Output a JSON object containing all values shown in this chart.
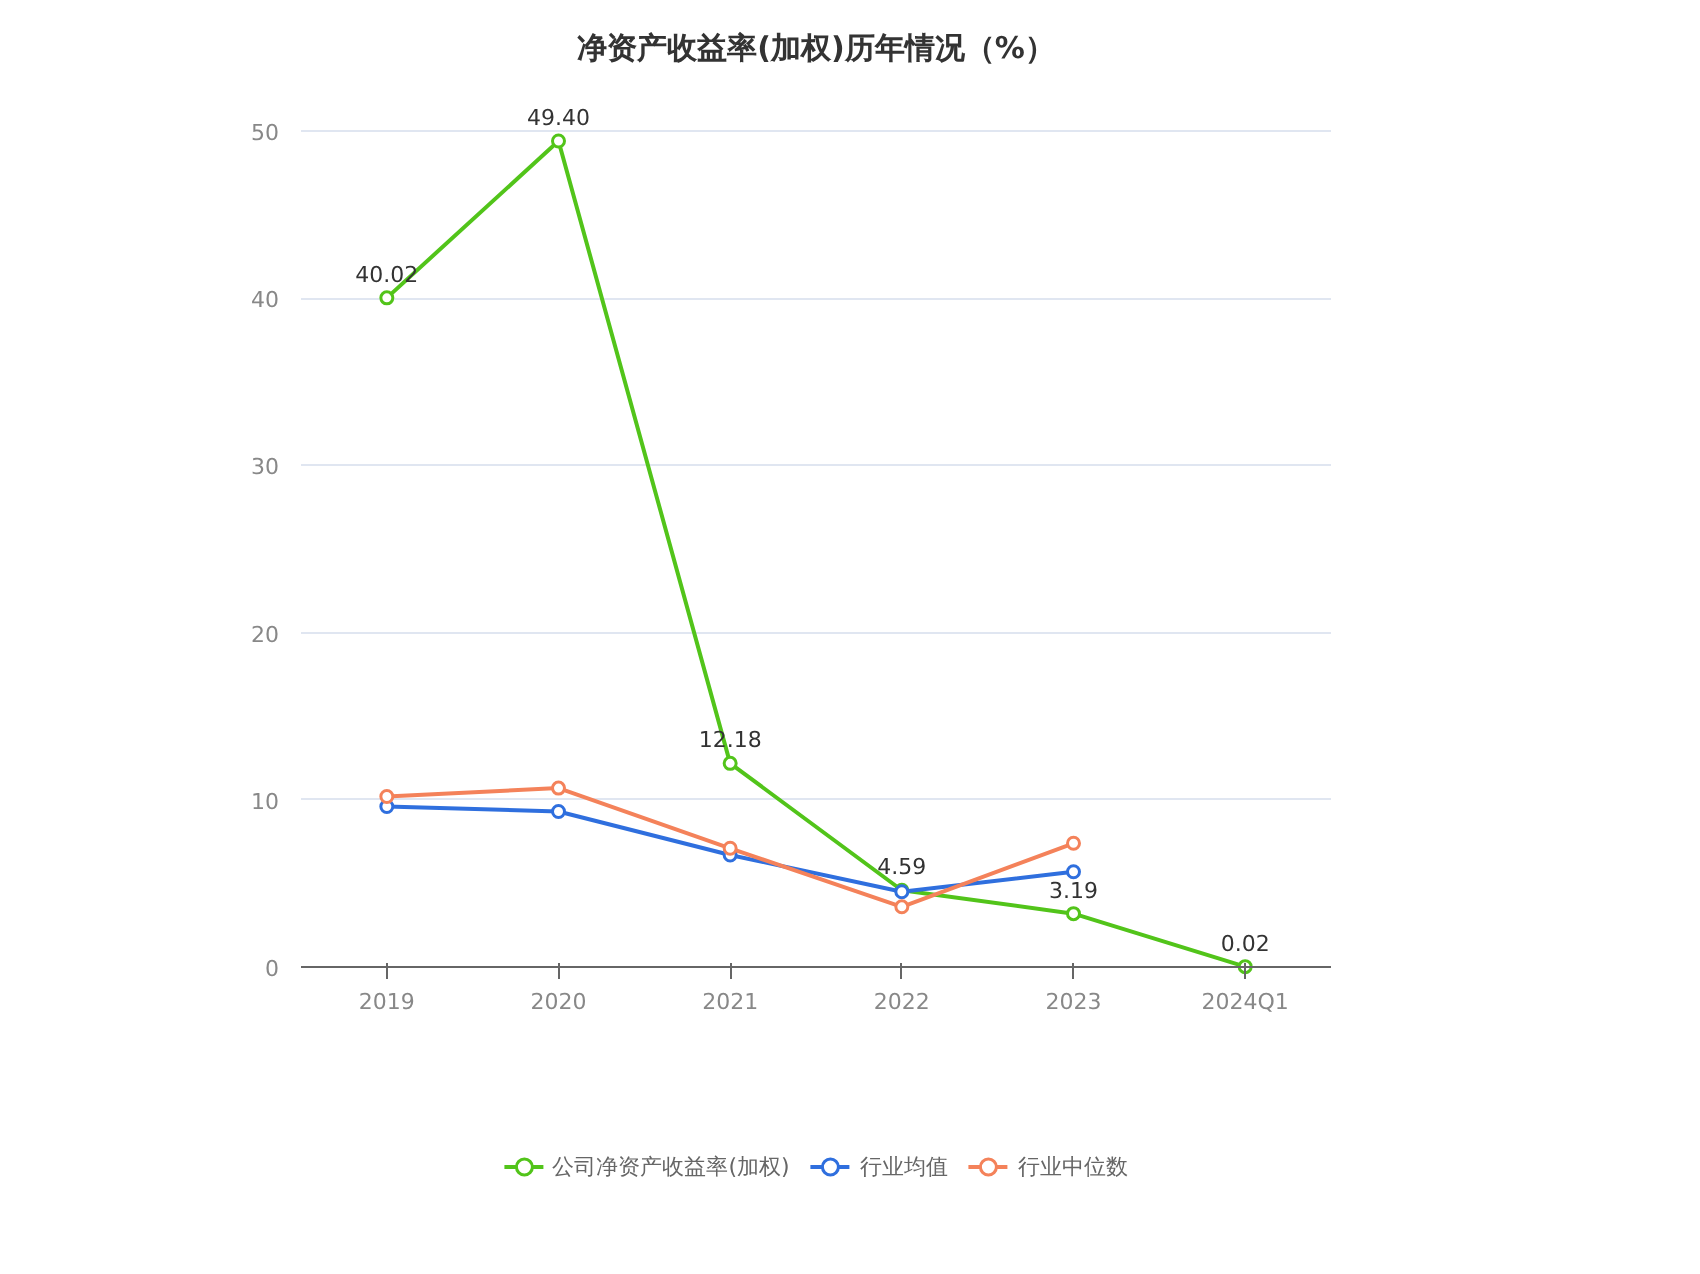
{
  "chart_data": {
    "type": "line",
    "title": "净资产收益率(加权)历年情况（%）",
    "categories": [
      "2019",
      "2020",
      "2021",
      "2022",
      "2023",
      "2024Q1"
    ],
    "series": [
      {
        "name": "公司净资产收益率(加权)",
        "color": "#52c41a",
        "values": [
          40.02,
          49.4,
          12.18,
          4.59,
          3.19,
          0.02
        ],
        "value_labels": [
          "40.02",
          "49.40",
          "12.18",
          "4.59",
          "3.19",
          "0.02"
        ]
      },
      {
        "name": "行业均值",
        "color": "#2f6fde",
        "values": [
          9.6,
          9.3,
          6.7,
          4.5,
          5.7,
          null
        ]
      },
      {
        "name": "行业中位数",
        "color": "#f4825a",
        "values": [
          10.2,
          10.7,
          7.1,
          3.6,
          7.4,
          null
        ]
      }
    ],
    "ylim": [
      0,
      50
    ],
    "yticks": [
      0,
      10,
      20,
      30,
      40,
      50
    ],
    "grid": "y",
    "legend": "bottom",
    "marker": "circle",
    "line_style": "solid"
  }
}
